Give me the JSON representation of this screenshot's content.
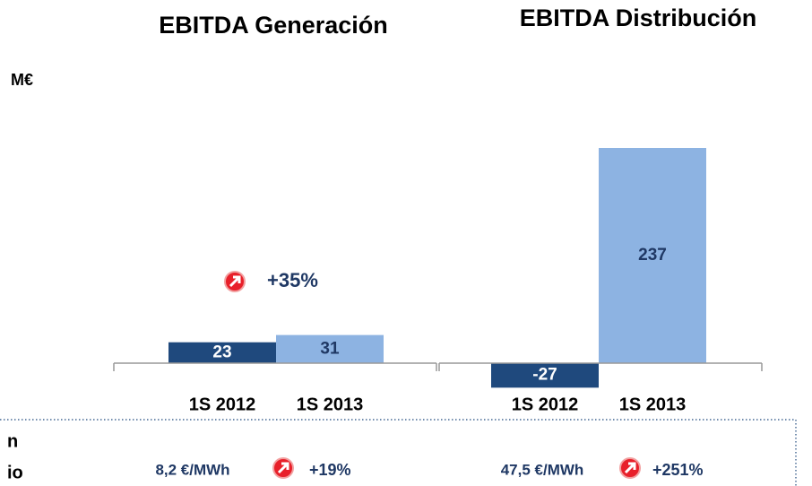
{
  "unit": "M€",
  "chart_data": [
    {
      "type": "bar",
      "title": "EBITDA Generación",
      "categories": [
        "1S 2012",
        "1S 2013"
      ],
      "values": [
        23,
        31
      ],
      "colors": [
        "#1f497d",
        "#8db3e2"
      ],
      "annotation": "+35%"
    },
    {
      "type": "bar",
      "title": "EBITDA Distribución",
      "categories": [
        "1S 2012",
        "1S 2013"
      ],
      "values": [
        -27,
        237
      ],
      "colors": [
        "#1f497d",
        "#8db3e2"
      ]
    }
  ],
  "footer": {
    "left_lines": [
      "n",
      "io"
    ],
    "items": [
      {
        "value": "8,2 €/MWh",
        "change": "+19%"
      },
      {
        "value": "47,5 €/MWh",
        "change": "+251%"
      }
    ]
  }
}
